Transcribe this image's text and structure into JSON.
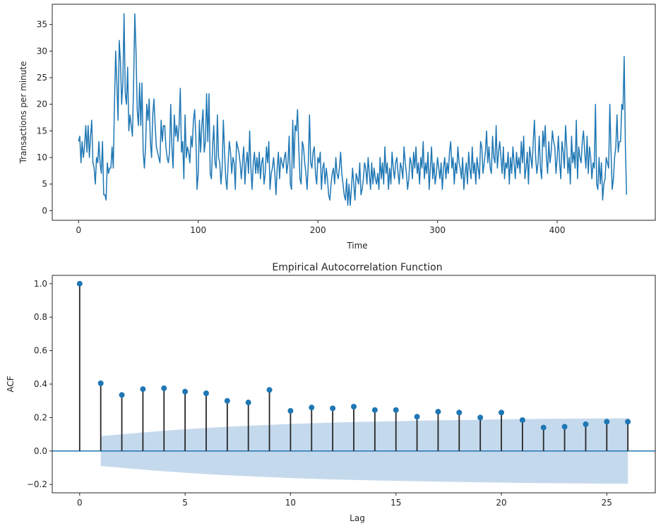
{
  "colors": {
    "line": "#1f77b4",
    "stem": "#262626",
    "band": "#c5d9ed",
    "baseline": "#1f77b4"
  },
  "chart_data": [
    {
      "type": "line",
      "title": "",
      "xlabel": "Time",
      "ylabel": "Transactions per minute",
      "xlim": [
        -22,
        482
      ],
      "ylim": [
        -1.8,
        38.8
      ],
      "xticks": [
        0,
        100,
        200,
        300,
        400
      ],
      "yticks": [
        0,
        5,
        10,
        15,
        20,
        25,
        30,
        35
      ],
      "grid": false,
      "series": [
        {
          "x_start": 0,
          "x_step": 1,
          "y": [
            13,
            14,
            9,
            13,
            10,
            12,
            16,
            11,
            16,
            10,
            14,
            17,
            9,
            8,
            5,
            10,
            9,
            13,
            9,
            7,
            13,
            3,
            3,
            2,
            9,
            7,
            8,
            8,
            12,
            8,
            20,
            30,
            24,
            17,
            32,
            28,
            20,
            24,
            37,
            22,
            20,
            27,
            15,
            18,
            16,
            14,
            24,
            37,
            30,
            19,
            16,
            24,
            16,
            24,
            11,
            8,
            12,
            20,
            17,
            21,
            13,
            10,
            18,
            21,
            16,
            12,
            11,
            10,
            9,
            17,
            13,
            16,
            16,
            12,
            10,
            9,
            11,
            20,
            12,
            8,
            18,
            14,
            16,
            13,
            16,
            23,
            11,
            13,
            6,
            18,
            10,
            12,
            11,
            9,
            14,
            12,
            17,
            19,
            14,
            4,
            7,
            17,
            11,
            16,
            19,
            11,
            13,
            22,
            13,
            22,
            7,
            6,
            12,
            16,
            9,
            8,
            18,
            10,
            9,
            5,
            8,
            17,
            11,
            6,
            4,
            9,
            13,
            11,
            7,
            10,
            9,
            4,
            13,
            12,
            11,
            9,
            6,
            9,
            12,
            5,
            9,
            11,
            7,
            15,
            8,
            4,
            9,
            11,
            7,
            10,
            7,
            11,
            6,
            9,
            10,
            5,
            7,
            12,
            9,
            13,
            4,
            7,
            8,
            10,
            7,
            3,
            8,
            11,
            6,
            10,
            9,
            8,
            10,
            11,
            7,
            9,
            14,
            5,
            4,
            17,
            8,
            16,
            15,
            19,
            12,
            6,
            5,
            13,
            12,
            9,
            7,
            4,
            9,
            18,
            9,
            8,
            11,
            12,
            7,
            5,
            10,
            9,
            11,
            4,
            8,
            9,
            5,
            8,
            6,
            3,
            2,
            5,
            7,
            8,
            5,
            10,
            7,
            6,
            8,
            11,
            7,
            5,
            3,
            2,
            6,
            1,
            5,
            1,
            4,
            8,
            5,
            2,
            7,
            6,
            5,
            9,
            3,
            4,
            6,
            9,
            8,
            5,
            10,
            7,
            4,
            9,
            5,
            8,
            6,
            5,
            7,
            4,
            10,
            6,
            9,
            5,
            12,
            7,
            9,
            4,
            8,
            5,
            11,
            8,
            6,
            9,
            10,
            7,
            5,
            9,
            8,
            6,
            12,
            9,
            7,
            4,
            6,
            10,
            9,
            6,
            11,
            8,
            12,
            7,
            9,
            5,
            10,
            8,
            13,
            6,
            9,
            7,
            11,
            4,
            8,
            12,
            6,
            9,
            5,
            7,
            10,
            8,
            6,
            9,
            4,
            8,
            10,
            6,
            9,
            7,
            11,
            13,
            8,
            10,
            5,
            9,
            7,
            12,
            9,
            8,
            6,
            10,
            4,
            7,
            9,
            5,
            11,
            8,
            6,
            12,
            7,
            9,
            5,
            10,
            8,
            6,
            13,
            12,
            7,
            9,
            11,
            15,
            9,
            12,
            8,
            7,
            14,
            10,
            9,
            16,
            8,
            11,
            13,
            10,
            7,
            12,
            6,
            9,
            8,
            11,
            5,
            10,
            7,
            12,
            9,
            6,
            11,
            8,
            10,
            7,
            13,
            9,
            14,
            6,
            8,
            11,
            5,
            12,
            10,
            8,
            13,
            17,
            10,
            7,
            9,
            14,
            8,
            6,
            15,
            12,
            16,
            10,
            7,
            13,
            9,
            11,
            15,
            13,
            12,
            7,
            10,
            14,
            9,
            6,
            13,
            11,
            8,
            16,
            12,
            7,
            10,
            5,
            14,
            9,
            11,
            8,
            17,
            6,
            12,
            10,
            9,
            13,
            15,
            11,
            8,
            14,
            7,
            12,
            10,
            6,
            9,
            8,
            20,
            5,
            4,
            10,
            5,
            9,
            2,
            5,
            6,
            10,
            9,
            8,
            20,
            11,
            4,
            6,
            10,
            12,
            18,
            11,
            13,
            13,
            20,
            19,
            29,
            12,
            3
          ]
        }
      ]
    },
    {
      "type": "stem",
      "title": "Empirical Autocorrelation Function",
      "xlabel": "Lag",
      "ylabel": "ACF",
      "xlim": [
        -1.3,
        27.3
      ],
      "ylim": [
        -0.25,
        1.05
      ],
      "xticks": [
        0,
        5,
        10,
        15,
        20,
        25
      ],
      "yticks": [
        -0.2,
        0.0,
        0.2,
        0.4,
        0.6,
        0.8,
        1.0
      ],
      "ytick_labels": [
        "−0.2",
        "0.0",
        "0.2",
        "0.4",
        "0.6",
        "0.8",
        "1.0"
      ],
      "grid": false,
      "lags": [
        0,
        1,
        2,
        3,
        4,
        5,
        6,
        7,
        8,
        9,
        10,
        11,
        12,
        13,
        14,
        15,
        16,
        17,
        18,
        19,
        20,
        21,
        22,
        23,
        24,
        25,
        26
      ],
      "values": [
        1.0,
        0.405,
        0.335,
        0.37,
        0.375,
        0.355,
        0.345,
        0.3,
        0.29,
        0.365,
        0.24,
        0.26,
        0.255,
        0.265,
        0.245,
        0.245,
        0.205,
        0.235,
        0.23,
        0.2,
        0.23,
        0.185,
        0.14,
        0.145,
        0.16,
        0.175,
        0.175
      ],
      "confidence_band": [
        0,
        0.09,
        0.1,
        0.111,
        0.121,
        0.13,
        0.138,
        0.145,
        0.151,
        0.156,
        0.162,
        0.166,
        0.17,
        0.173,
        0.176,
        0.178,
        0.181,
        0.183,
        0.185,
        0.187,
        0.189,
        0.191,
        0.192,
        0.193,
        0.194,
        0.195,
        0.196
      ]
    }
  ]
}
